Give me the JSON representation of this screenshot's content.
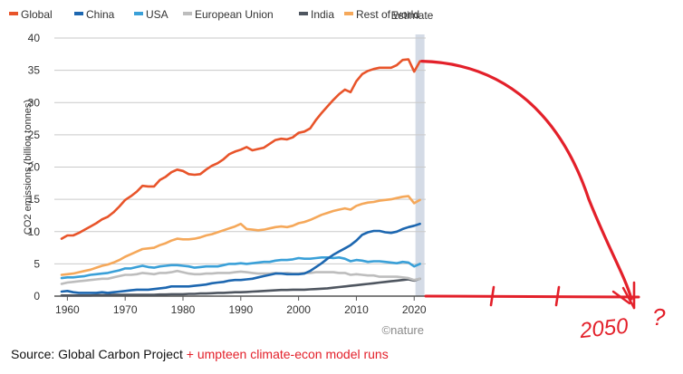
{
  "chart_data": {
    "type": "line",
    "ylabel": "CO2 emissions (billion tonnes)",
    "ylim": [
      0,
      40
    ],
    "xlim": [
      1959,
      2022
    ],
    "yticks": [
      0,
      5,
      10,
      15,
      20,
      25,
      30,
      35,
      40
    ],
    "xticks": [
      1960,
      1970,
      1980,
      1990,
      2000,
      2010,
      2020
    ],
    "grid": "horizontal",
    "legend_position": "top",
    "estimate_label": "Estimate",
    "estimate_year": 2021,
    "watermark": "©nature",
    "series": [
      {
        "name": "Global",
        "color": "#e8542a",
        "x": [
          1959,
          1960,
          1961,
          1962,
          1963,
          1964,
          1965,
          1966,
          1967,
          1968,
          1969,
          1970,
          1971,
          1972,
          1973,
          1974,
          1975,
          1976,
          1977,
          1978,
          1979,
          1980,
          1981,
          1982,
          1983,
          1984,
          1985,
          1986,
          1987,
          1988,
          1989,
          1990,
          1991,
          1992,
          1993,
          1994,
          1995,
          1996,
          1997,
          1998,
          1999,
          2000,
          2001,
          2002,
          2003,
          2004,
          2005,
          2006,
          2007,
          2008,
          2009,
          2010,
          2011,
          2012,
          2013,
          2014,
          2015,
          2016,
          2017,
          2018,
          2019,
          2020,
          2021
        ],
        "values": [
          8.9,
          9.4,
          9.4,
          9.8,
          10.3,
          10.8,
          11.3,
          11.9,
          12.3,
          13.0,
          13.9,
          14.9,
          15.5,
          16.2,
          17.1,
          17.0,
          17.0,
          18.0,
          18.5,
          19.2,
          19.6,
          19.4,
          18.9,
          18.8,
          18.9,
          19.6,
          20.2,
          20.6,
          21.2,
          22.0,
          22.4,
          22.7,
          23.1,
          22.6,
          22.8,
          23.0,
          23.6,
          24.2,
          24.4,
          24.3,
          24.6,
          25.3,
          25.5,
          26.0,
          27.3,
          28.4,
          29.4,
          30.4,
          31.3,
          32.0,
          31.6,
          33.3,
          34.4,
          34.9,
          35.2,
          35.4,
          35.4,
          35.4,
          35.8,
          36.6,
          36.7,
          34.8,
          36.4
        ]
      },
      {
        "name": "China",
        "color": "#1d67b0",
        "x": [
          1959,
          1960,
          1961,
          1962,
          1963,
          1964,
          1965,
          1966,
          1967,
          1968,
          1969,
          1970,
          1971,
          1972,
          1973,
          1974,
          1975,
          1976,
          1977,
          1978,
          1979,
          1980,
          1981,
          1982,
          1983,
          1984,
          1985,
          1986,
          1987,
          1988,
          1989,
          1990,
          1991,
          1992,
          1993,
          1994,
          1995,
          1996,
          1997,
          1998,
          1999,
          2000,
          2001,
          2002,
          2003,
          2004,
          2005,
          2006,
          2007,
          2008,
          2009,
          2010,
          2011,
          2012,
          2013,
          2014,
          2015,
          2016,
          2017,
          2018,
          2019,
          2020,
          2021
        ],
        "values": [
          0.7,
          0.8,
          0.6,
          0.5,
          0.5,
          0.5,
          0.5,
          0.6,
          0.5,
          0.6,
          0.7,
          0.8,
          0.9,
          1.0,
          1.0,
          1.0,
          1.1,
          1.2,
          1.3,
          1.5,
          1.5,
          1.5,
          1.5,
          1.6,
          1.7,
          1.8,
          2.0,
          2.1,
          2.2,
          2.4,
          2.5,
          2.5,
          2.6,
          2.7,
          2.9,
          3.1,
          3.3,
          3.5,
          3.5,
          3.4,
          3.4,
          3.4,
          3.5,
          3.9,
          4.5,
          5.1,
          5.8,
          6.4,
          6.9,
          7.4,
          7.9,
          8.6,
          9.5,
          9.9,
          10.1,
          10.1,
          9.9,
          9.8,
          10.0,
          10.4,
          10.7,
          10.9,
          11.2
        ]
      },
      {
        "name": "USA",
        "color": "#3aa0d8",
        "x": [
          1959,
          1960,
          1961,
          1962,
          1963,
          1964,
          1965,
          1966,
          1967,
          1968,
          1969,
          1970,
          1971,
          1972,
          1973,
          1974,
          1975,
          1976,
          1977,
          1978,
          1979,
          1980,
          1981,
          1982,
          1983,
          1984,
          1985,
          1986,
          1987,
          1988,
          1989,
          1990,
          1991,
          1992,
          1993,
          1994,
          1995,
          1996,
          1997,
          1998,
          1999,
          2000,
          2001,
          2002,
          2003,
          2004,
          2005,
          2006,
          2007,
          2008,
          2009,
          2010,
          2011,
          2012,
          2013,
          2014,
          2015,
          2016,
          2017,
          2018,
          2019,
          2020,
          2021
        ],
        "values": [
          2.8,
          2.9,
          2.9,
          3.0,
          3.1,
          3.3,
          3.4,
          3.5,
          3.6,
          3.8,
          4.0,
          4.3,
          4.3,
          4.5,
          4.7,
          4.5,
          4.4,
          4.6,
          4.7,
          4.8,
          4.8,
          4.7,
          4.6,
          4.4,
          4.5,
          4.6,
          4.6,
          4.6,
          4.8,
          5.0,
          5.0,
          5.1,
          5.0,
          5.1,
          5.2,
          5.3,
          5.3,
          5.5,
          5.6,
          5.6,
          5.7,
          5.9,
          5.8,
          5.8,
          5.9,
          6.0,
          6.0,
          5.9,
          6.0,
          5.8,
          5.4,
          5.6,
          5.5,
          5.3,
          5.4,
          5.4,
          5.3,
          5.2,
          5.1,
          5.3,
          5.2,
          4.6,
          5.0
        ]
      },
      {
        "name": "European Union",
        "color": "#bdbdbd",
        "x": [
          1959,
          1960,
          1961,
          1962,
          1963,
          1964,
          1965,
          1966,
          1967,
          1968,
          1969,
          1970,
          1971,
          1972,
          1973,
          1974,
          1975,
          1976,
          1977,
          1978,
          1979,
          1980,
          1981,
          1982,
          1983,
          1984,
          1985,
          1986,
          1987,
          1988,
          1989,
          1990,
          1991,
          1992,
          1993,
          1994,
          1995,
          1996,
          1997,
          1998,
          1999,
          2000,
          2001,
          2002,
          2003,
          2004,
          2005,
          2006,
          2007,
          2008,
          2009,
          2010,
          2011,
          2012,
          2013,
          2014,
          2015,
          2016,
          2017,
          2018,
          2019,
          2020,
          2021
        ],
        "values": [
          1.9,
          2.1,
          2.2,
          2.3,
          2.4,
          2.5,
          2.6,
          2.7,
          2.7,
          2.9,
          3.1,
          3.3,
          3.3,
          3.4,
          3.6,
          3.5,
          3.4,
          3.6,
          3.6,
          3.7,
          3.9,
          3.7,
          3.5,
          3.4,
          3.4,
          3.5,
          3.5,
          3.6,
          3.6,
          3.6,
          3.7,
          3.8,
          3.7,
          3.6,
          3.5,
          3.5,
          3.5,
          3.6,
          3.5,
          3.6,
          3.5,
          3.5,
          3.6,
          3.6,
          3.7,
          3.7,
          3.7,
          3.7,
          3.6,
          3.6,
          3.3,
          3.4,
          3.3,
          3.2,
          3.2,
          3.0,
          3.0,
          3.0,
          3.0,
          2.9,
          2.8,
          2.5,
          2.7
        ]
      },
      {
        "name": "India",
        "color": "#4f5660",
        "x": [
          1959,
          1960,
          1961,
          1962,
          1963,
          1964,
          1965,
          1966,
          1967,
          1968,
          1969,
          1970,
          1971,
          1972,
          1973,
          1974,
          1975,
          1976,
          1977,
          1978,
          1979,
          1980,
          1981,
          1982,
          1983,
          1984,
          1985,
          1986,
          1987,
          1988,
          1989,
          1990,
          1991,
          1992,
          1993,
          1994,
          1995,
          1996,
          1997,
          1998,
          1999,
          2000,
          2001,
          2002,
          2003,
          2004,
          2005,
          2006,
          2007,
          2008,
          2009,
          2010,
          2011,
          2012,
          2013,
          2014,
          2015,
          2016,
          2017,
          2018,
          2019,
          2020,
          2021
        ],
        "values": [
          0.1,
          0.1,
          0.1,
          0.1,
          0.1,
          0.1,
          0.15,
          0.15,
          0.15,
          0.2,
          0.2,
          0.2,
          0.2,
          0.2,
          0.2,
          0.2,
          0.2,
          0.25,
          0.25,
          0.3,
          0.3,
          0.3,
          0.35,
          0.35,
          0.4,
          0.4,
          0.45,
          0.5,
          0.5,
          0.55,
          0.6,
          0.6,
          0.65,
          0.7,
          0.75,
          0.8,
          0.85,
          0.9,
          0.95,
          0.95,
          1.0,
          1.0,
          1.0,
          1.05,
          1.1,
          1.15,
          1.2,
          1.3,
          1.4,
          1.5,
          1.6,
          1.7,
          1.8,
          1.9,
          2.0,
          2.1,
          2.2,
          2.3,
          2.4,
          2.5,
          2.6,
          2.4,
          2.7
        ]
      },
      {
        "name": "Rest of world",
        "color": "#f5a85a",
        "x": [
          1959,
          1960,
          1961,
          1962,
          1963,
          1964,
          1965,
          1966,
          1967,
          1968,
          1969,
          1970,
          1971,
          1972,
          1973,
          1974,
          1975,
          1976,
          1977,
          1978,
          1979,
          1980,
          1981,
          1982,
          1983,
          1984,
          1985,
          1986,
          1987,
          1988,
          1989,
          1990,
          1991,
          1992,
          1993,
          1994,
          1995,
          1996,
          1997,
          1998,
          1999,
          2000,
          2001,
          2002,
          2003,
          2004,
          2005,
          2006,
          2007,
          2008,
          2009,
          2010,
          2011,
          2012,
          2013,
          2014,
          2015,
          2016,
          2017,
          2018,
          2019,
          2020,
          2021
        ],
        "values": [
          3.3,
          3.4,
          3.5,
          3.7,
          3.9,
          4.1,
          4.4,
          4.7,
          4.9,
          5.2,
          5.6,
          6.1,
          6.5,
          6.9,
          7.3,
          7.4,
          7.5,
          7.9,
          8.2,
          8.6,
          8.9,
          8.8,
          8.8,
          8.9,
          9.1,
          9.4,
          9.6,
          9.9,
          10.2,
          10.5,
          10.8,
          11.2,
          10.4,
          10.3,
          10.2,
          10.3,
          10.5,
          10.7,
          10.8,
          10.7,
          10.9,
          11.3,
          11.5,
          11.8,
          12.2,
          12.6,
          12.9,
          13.2,
          13.4,
          13.6,
          13.4,
          14.0,
          14.3,
          14.5,
          14.6,
          14.8,
          14.9,
          15.0,
          15.2,
          15.4,
          15.5,
          14.4,
          14.9
        ]
      }
    ]
  },
  "overlay": {
    "year_label": "2050",
    "question_mark": "?",
    "color": "#e3202a",
    "start_year": 2021,
    "start_value": 36.4,
    "end_year": 2050,
    "end_value": 0
  },
  "source": {
    "prefix": "Source: Global Carbon Project ",
    "suffix": "+ umpteen climate-econ model runs"
  }
}
